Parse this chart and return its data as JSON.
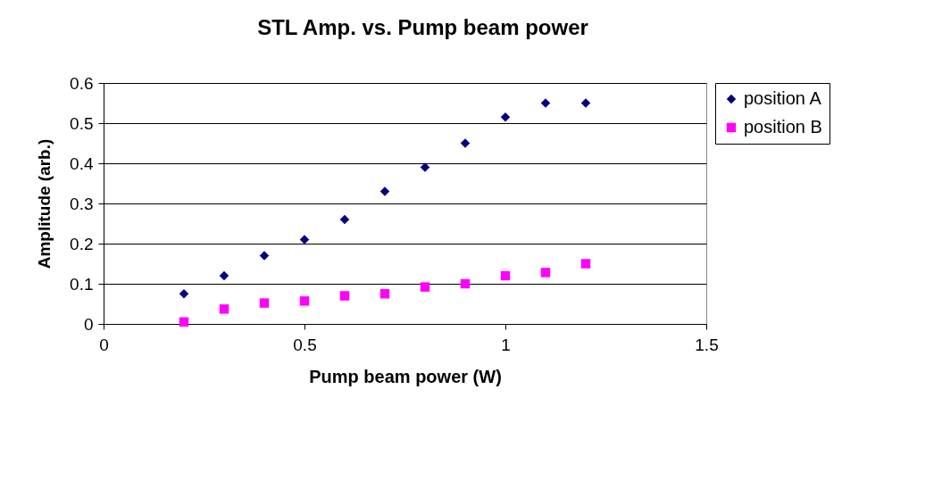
{
  "chart_data": {
    "type": "scatter",
    "title": "STL Amp. vs. Pump beam power",
    "xlabel": "Pump beam power (W)",
    "ylabel": "Amplitude (arb.)",
    "x": [
      0.2,
      0.3,
      0.4,
      0.5,
      0.6,
      0.7,
      0.8,
      0.9,
      1.0,
      1.1,
      1.2
    ],
    "series": [
      {
        "name": "position A",
        "color": "#000080",
        "marker": "diamond",
        "values": [
          0.075,
          0.12,
          0.17,
          0.21,
          0.26,
          0.33,
          0.39,
          0.45,
          0.515,
          0.55,
          0.55
        ]
      },
      {
        "name": "position B",
        "color": "#ff00ff",
        "marker": "square",
        "values": [
          0.005,
          0.037,
          0.052,
          0.057,
          0.07,
          0.075,
          0.092,
          0.1,
          0.12,
          0.128,
          0.15
        ]
      }
    ],
    "xlim": [
      0,
      1.5
    ],
    "xticks": [
      0,
      0.5,
      1,
      1.5
    ],
    "ylim": [
      0,
      0.6
    ],
    "yticks": [
      0,
      0.1,
      0.2,
      0.3,
      0.4,
      0.5,
      0.6
    ],
    "grid": "y",
    "legend": "right"
  }
}
